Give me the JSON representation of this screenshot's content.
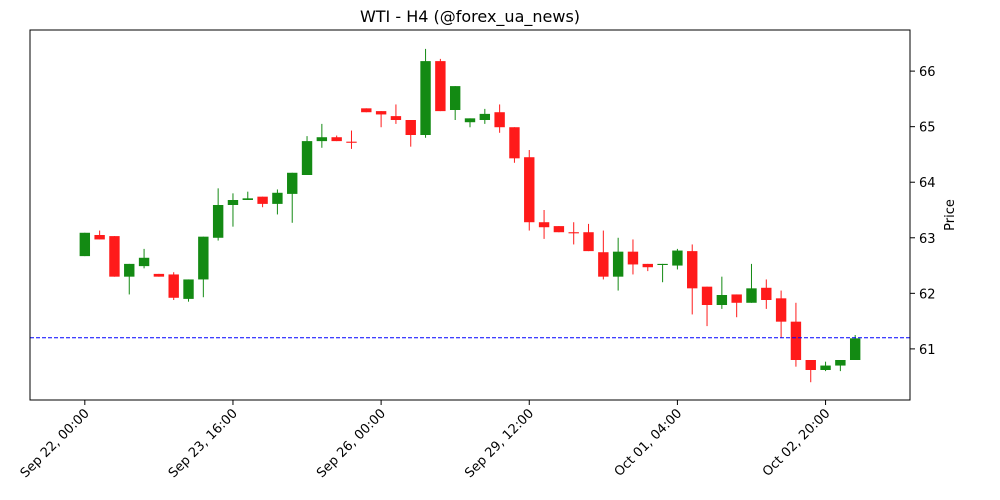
{
  "chart_data": {
    "type": "candlestick",
    "title": "WTI - H4 (@forex_ua_news)",
    "y_label": "Price",
    "categories": [
      "Sep 22, 00:00",
      null,
      null,
      null,
      null,
      null,
      null,
      null,
      null,
      null,
      "Sep 23, 16:00",
      null,
      null,
      null,
      null,
      null,
      null,
      null,
      null,
      null,
      "Sep 26, 00:00",
      null,
      null,
      null,
      null,
      null,
      null,
      null,
      null,
      null,
      "Sep 29, 12:00",
      null,
      null,
      null,
      null,
      null,
      null,
      null,
      null,
      null,
      "Oct 01, 04:00",
      null,
      null,
      null,
      null,
      null,
      null,
      null,
      null,
      null,
      "Oct 02, 20:00",
      null,
      null
    ],
    "open": [
      62.67,
      63.05,
      63.03,
      62.3,
      62.49,
      62.35,
      62.34,
      61.9,
      62.25,
      63.0,
      63.59,
      63.68,
      63.74,
      63.61,
      63.79,
      64.13,
      64.74,
      64.81,
      64.73,
      65.33,
      65.28,
      65.19,
      65.12,
      64.85,
      66.18,
      65.3,
      65.08,
      65.12,
      65.26,
      64.99,
      64.45,
      63.28,
      63.21,
      63.1,
      63.1,
      62.74,
      62.3,
      62.75,
      62.53,
      62.51,
      62.5,
      62.76,
      62.12,
      61.79,
      61.98,
      61.83,
      62.1,
      61.91,
      61.49,
      60.8,
      60.62,
      60.7,
      60.8
    ],
    "high": [
      63.09,
      63.13,
      63.03,
      62.53,
      62.8,
      62.35,
      62.38,
      62.25,
      63.02,
      63.89,
      63.8,
      63.83,
      63.74,
      63.87,
      64.17,
      64.83,
      65.05,
      64.84,
      64.93,
      65.33,
      65.28,
      65.4,
      65.12,
      66.4,
      66.22,
      65.73,
      65.15,
      65.32,
      65.4,
      64.99,
      64.58,
      63.5,
      63.21,
      63.28,
      63.25,
      63.13,
      63.0,
      62.97,
      62.53,
      62.53,
      62.8,
      62.88,
      62.12,
      62.3,
      61.98,
      62.53,
      62.25,
      62.05,
      61.83,
      60.8,
      60.77,
      60.8,
      61.25
    ],
    "low": [
      62.67,
      62.97,
      62.3,
      61.98,
      62.45,
      62.3,
      61.88,
      61.85,
      61.93,
      62.95,
      63.2,
      63.68,
      63.55,
      63.42,
      63.27,
      64.13,
      64.62,
      64.74,
      64.6,
      65.26,
      64.99,
      65.05,
      64.64,
      64.8,
      65.28,
      65.12,
      64.99,
      65.05,
      64.89,
      64.35,
      63.13,
      62.98,
      63.1,
      62.88,
      62.76,
      62.25,
      62.05,
      62.34,
      62.4,
      62.2,
      62.43,
      61.62,
      61.41,
      61.72,
      61.57,
      61.83,
      61.72,
      61.2,
      60.68,
      60.4,
      60.6,
      60.6,
      60.8
    ],
    "close": [
      63.09,
      62.97,
      62.3,
      62.53,
      62.64,
      62.3,
      61.92,
      62.25,
      63.02,
      63.59,
      63.68,
      63.71,
      63.61,
      63.81,
      64.17,
      64.74,
      64.81,
      64.74,
      64.71,
      65.26,
      65.22,
      65.12,
      64.85,
      66.18,
      65.28,
      65.73,
      65.15,
      65.23,
      64.99,
      64.43,
      63.28,
      63.19,
      63.1,
      63.08,
      62.76,
      62.3,
      62.75,
      62.52,
      62.47,
      62.53,
      62.77,
      62.09,
      61.79,
      61.97,
      61.83,
      62.09,
      61.88,
      61.49,
      60.8,
      60.62,
      60.7,
      60.8,
      61.19
    ],
    "up_color": "#138a13",
    "down_color": "#ff1a1a",
    "reference_line": {
      "value": 61.2,
      "color": "#0000ff"
    },
    "xlim": [
      -3.7,
      55.7
    ],
    "ylim": [
      60.08,
      66.74
    ],
    "yticks": [
      61,
      62,
      63,
      64,
      65,
      66
    ]
  }
}
